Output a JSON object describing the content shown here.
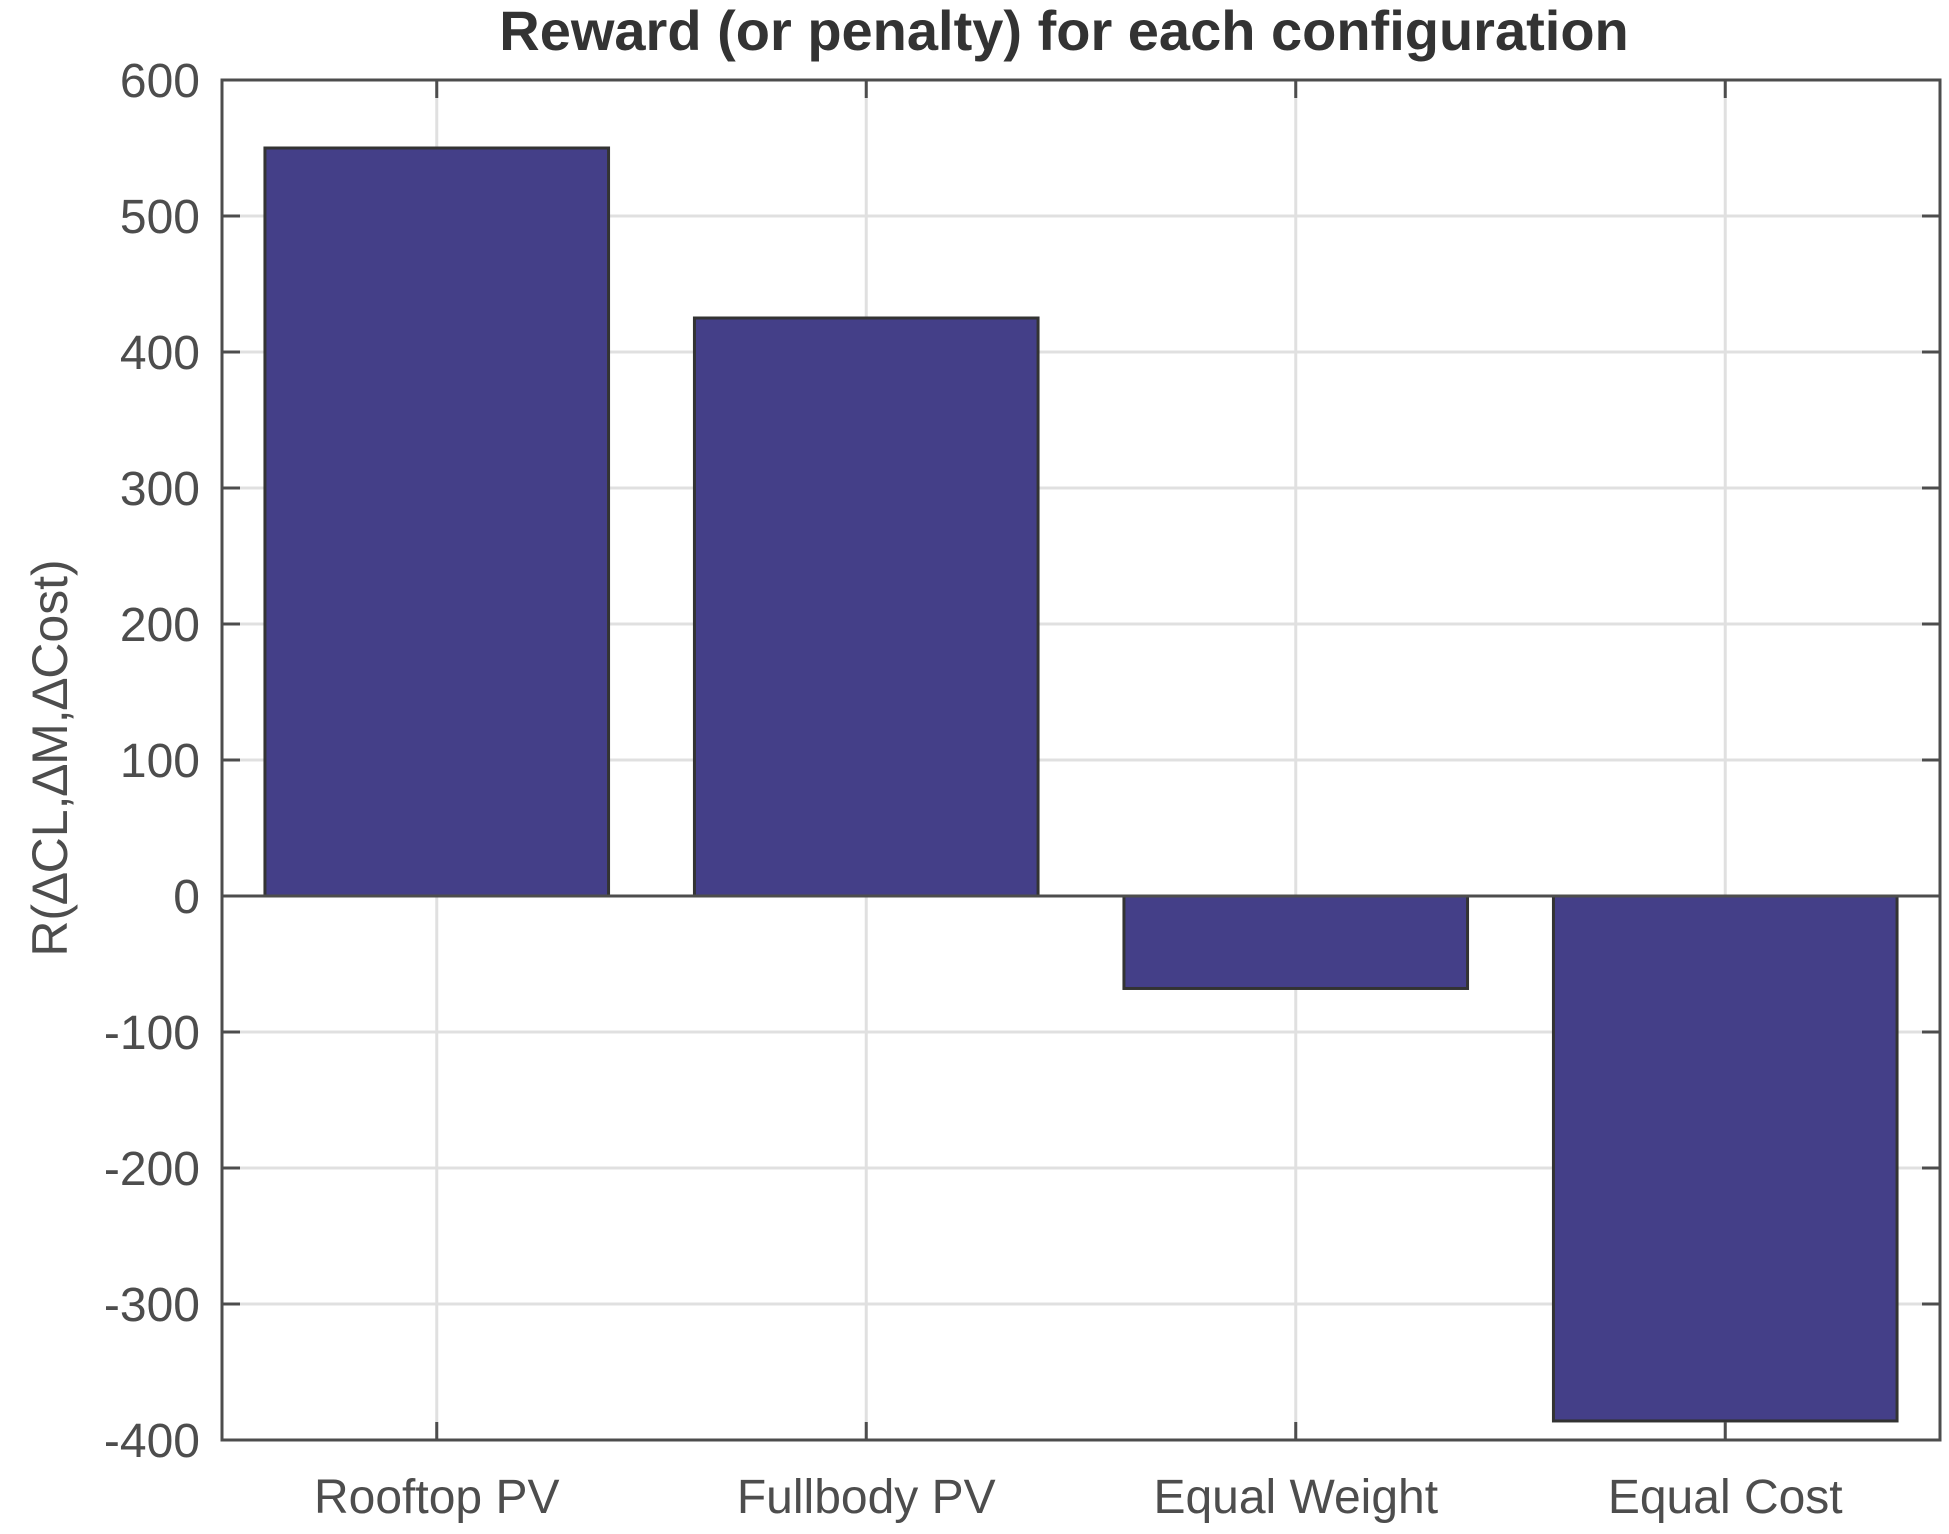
{
  "chart_data": {
    "type": "bar",
    "title": "Reward (or penalty) for each configuration",
    "xlabel": "",
    "ylabel": "R(∆CL,∆M,∆Cost)",
    "categories": [
      "Rooftop PV",
      "Fullbody PV",
      "Equal Weight",
      "Equal Cost"
    ],
    "values": [
      550,
      425,
      -68,
      -386
    ],
    "ylim": [
      -400,
      600
    ],
    "yticks": [
      -400,
      -300,
      -200,
      -100,
      0,
      100,
      200,
      300,
      400,
      500,
      600
    ],
    "grid": true,
    "bar_color": "#443f88",
    "bar_edge_color": "#333333",
    "grid_color": "#e0e0e0",
    "axis_color": "#4d4d4d"
  }
}
